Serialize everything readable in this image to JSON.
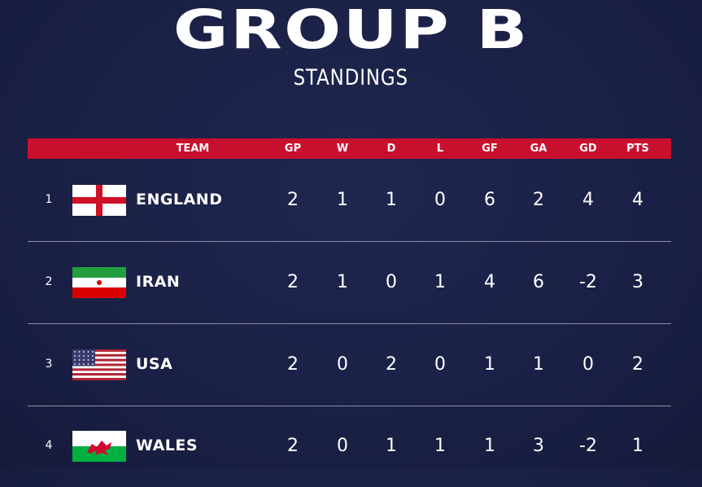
{
  "title": "GROUP B",
  "subtitle": "STANDINGS",
  "colors": {
    "background": "#1a2045",
    "header_bar": "#c8102e",
    "text": "#ffffff"
  },
  "columns": [
    "TEAM",
    "GP",
    "W",
    "D",
    "L",
    "GF",
    "GA",
    "GD",
    "PTS"
  ],
  "rows": [
    {
      "rank": "1",
      "team": "ENGLAND",
      "flag": "england-flag-icon",
      "stats": [
        "2",
        "1",
        "1",
        "0",
        "6",
        "2",
        "4",
        "4"
      ]
    },
    {
      "rank": "2",
      "team": "IRAN",
      "flag": "iran-flag-icon",
      "stats": [
        "2",
        "1",
        "0",
        "1",
        "4",
        "6",
        "-2",
        "3"
      ]
    },
    {
      "rank": "3",
      "team": "USA",
      "flag": "usa-flag-icon",
      "stats": [
        "2",
        "0",
        "2",
        "0",
        "1",
        "1",
        "0",
        "2"
      ]
    },
    {
      "rank": "4",
      "team": "WALES",
      "flag": "wales-flag-icon",
      "stats": [
        "2",
        "0",
        "1",
        "1",
        "1",
        "3",
        "-2",
        "1"
      ]
    }
  ]
}
